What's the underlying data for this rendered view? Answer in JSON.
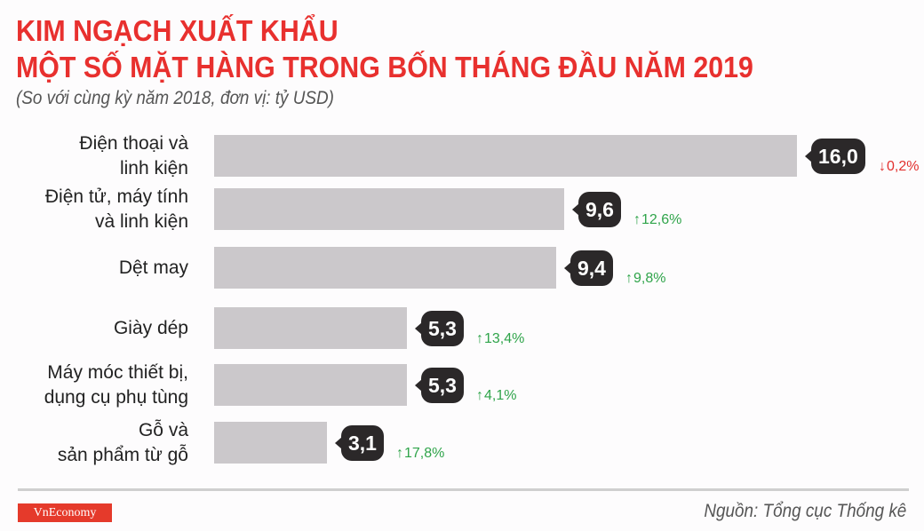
{
  "header": {
    "title_line1": "KIM NGẠCH XUẤT KHẨU",
    "title_line2": "MỘT SỐ MẶT HÀNG TRONG BỐN THÁNG ĐẦU NĂM 2019",
    "subtitle": "(So với cùng kỳ năm 2018, đơn vị: tỷ USD)"
  },
  "rows": [
    {
      "label": "Điện thoại và linh kiện",
      "value": "16,0",
      "change": "0,2%",
      "direction": "down"
    },
    {
      "label": "Điện tử, máy tính và linh kiện",
      "value": "9,6",
      "change": "12,6%",
      "direction": "up"
    },
    {
      "label": "Dệt may",
      "value": "9,4",
      "change": "9,8%",
      "direction": "up"
    },
    {
      "label": "Giày dép",
      "value": "5,3",
      "change": "13,4%",
      "direction": "up"
    },
    {
      "label": "Máy móc thiết bị, dụng cụ phụ tùng",
      "value": "5,3",
      "change": "4,1%",
      "direction": "up"
    },
    {
      "label": "Gỗ và sản phẩm từ gỗ",
      "value": "3,1",
      "change": "17,8%",
      "direction": "up"
    }
  ],
  "arrows": {
    "up": "↑",
    "down": "↓"
  },
  "footer": {
    "logo": "VnEconomy",
    "source": "Nguồn: Tổng cục Thống kê"
  },
  "colors": {
    "title": "#e8302e",
    "bar": "#cbc8cb",
    "bubble": "#2b2829",
    "up": "#2fa44a",
    "down": "#e2302e"
  },
  "chart_data": {
    "type": "bar",
    "orientation": "horizontal",
    "title": "KIM NGẠCH XUẤT KHẨU MỘT SỐ MẶT HÀNG TRONG BỐN THÁNG ĐẦU NĂM 2019",
    "subtitle": "(So với cùng kỳ năm 2018, đơn vị: tỷ USD)",
    "categories": [
      "Điện thoại và linh kiện",
      "Điện tử, máy tính và linh kiện",
      "Dệt may",
      "Giày dép",
      "Máy móc thiết bị, dụng cụ phụ tùng",
      "Gỗ và sản phẩm từ gỗ"
    ],
    "values": [
      16.0,
      9.6,
      9.4,
      5.3,
      5.3,
      3.1
    ],
    "change_pct_vs_2018": [
      -0.2,
      12.6,
      9.8,
      13.4,
      4.1,
      17.8
    ],
    "unit": "tỷ USD",
    "xlabel": "",
    "ylabel": "",
    "grid": false,
    "legend": null,
    "source": "Nguồn: Tổng cục Thống kê"
  }
}
